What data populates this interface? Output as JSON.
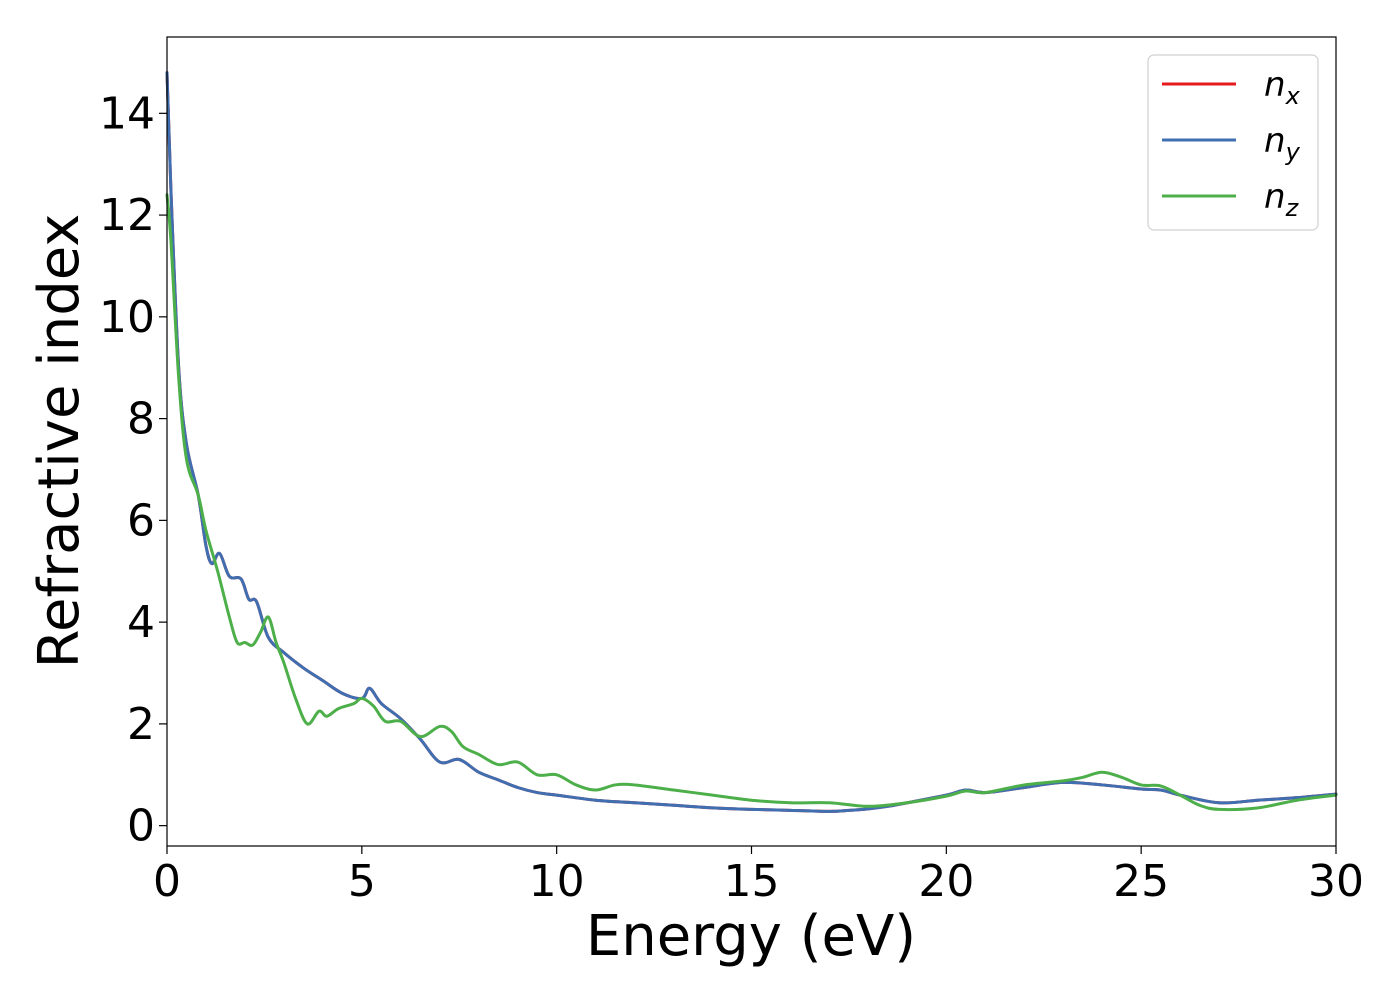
{
  "chart_data": {
    "type": "line",
    "title": "",
    "xlabel": "Energy (eV)",
    "ylabel": "Refractive index",
    "xlim": [
      0,
      30
    ],
    "ylim": [
      -0.4,
      15.5
    ],
    "xticks": [
      0,
      5,
      10,
      15,
      20,
      25,
      30
    ],
    "yticks": [
      0,
      2,
      4,
      6,
      8,
      10,
      12,
      14
    ],
    "grid": false,
    "legend_position": "top-right",
    "series": [
      {
        "name": "n_x",
        "legend_base": "n",
        "legend_sub": "x",
        "color": "#e41a1c",
        "x": [
          0.0,
          0.1,
          0.3,
          0.5,
          0.8,
          1.0,
          1.15,
          1.35,
          1.6,
          1.9,
          2.1,
          2.3,
          2.6,
          3.0,
          3.5,
          4.0,
          4.5,
          5.0,
          5.2,
          5.5,
          6.0,
          6.5,
          7.0,
          7.5,
          8.0,
          8.5,
          9.0,
          9.5,
          10.0,
          11.0,
          12.0,
          13.0,
          14.0,
          15.0,
          16.0,
          17.0,
          17.5,
          18.0,
          18.5,
          19.0,
          20.0,
          20.5,
          21.0,
          22.0,
          23.0,
          24.0,
          25.0,
          25.5,
          26.0,
          27.0,
          28.0,
          29.0,
          30.0
        ],
        "y": [
          14.8,
          12.5,
          9.0,
          7.5,
          6.5,
          5.5,
          5.15,
          5.35,
          4.9,
          4.85,
          4.45,
          4.4,
          3.7,
          3.4,
          3.1,
          2.85,
          2.6,
          2.5,
          2.7,
          2.4,
          2.1,
          1.7,
          1.25,
          1.3,
          1.05,
          0.9,
          0.75,
          0.65,
          0.6,
          0.5,
          0.45,
          0.4,
          0.35,
          0.32,
          0.3,
          0.28,
          0.3,
          0.33,
          0.38,
          0.45,
          0.6,
          0.7,
          0.65,
          0.75,
          0.85,
          0.8,
          0.72,
          0.7,
          0.6,
          0.45,
          0.5,
          0.55,
          0.62
        ]
      },
      {
        "name": "n_y",
        "legend_base": "n",
        "legend_sub": "y",
        "color": "#3f6fb0",
        "x": [
          0.0,
          0.1,
          0.3,
          0.5,
          0.8,
          1.0,
          1.15,
          1.35,
          1.6,
          1.9,
          2.1,
          2.3,
          2.6,
          3.0,
          3.5,
          4.0,
          4.5,
          5.0,
          5.2,
          5.5,
          6.0,
          6.5,
          7.0,
          7.5,
          8.0,
          8.5,
          9.0,
          9.5,
          10.0,
          11.0,
          12.0,
          13.0,
          14.0,
          15.0,
          16.0,
          17.0,
          17.5,
          18.0,
          18.5,
          19.0,
          20.0,
          20.5,
          21.0,
          22.0,
          23.0,
          24.0,
          25.0,
          25.5,
          26.0,
          27.0,
          28.0,
          29.0,
          30.0
        ],
        "y": [
          14.8,
          12.5,
          9.0,
          7.5,
          6.5,
          5.5,
          5.15,
          5.35,
          4.9,
          4.85,
          4.45,
          4.4,
          3.7,
          3.4,
          3.1,
          2.85,
          2.6,
          2.5,
          2.7,
          2.4,
          2.1,
          1.7,
          1.25,
          1.3,
          1.05,
          0.9,
          0.75,
          0.65,
          0.6,
          0.5,
          0.45,
          0.4,
          0.35,
          0.32,
          0.3,
          0.28,
          0.3,
          0.33,
          0.38,
          0.45,
          0.6,
          0.7,
          0.65,
          0.75,
          0.85,
          0.8,
          0.72,
          0.7,
          0.6,
          0.45,
          0.5,
          0.55,
          0.62
        ]
      },
      {
        "name": "n_z",
        "legend_base": "n",
        "legend_sub": "z",
        "color": "#4daf4a",
        "x": [
          0.0,
          0.1,
          0.3,
          0.5,
          0.8,
          1.0,
          1.3,
          1.6,
          1.8,
          2.0,
          2.2,
          2.4,
          2.6,
          2.8,
          3.0,
          3.3,
          3.6,
          3.9,
          4.1,
          4.4,
          4.8,
          5.0,
          5.3,
          5.6,
          6.0,
          6.5,
          7.0,
          7.3,
          7.6,
          8.0,
          8.5,
          9.0,
          9.5,
          10.0,
          10.5,
          11.0,
          11.5,
          12.0,
          13.0,
          14.0,
          15.0,
          16.0,
          17.0,
          18.0,
          19.0,
          20.0,
          20.5,
          21.0,
          22.0,
          23.0,
          23.5,
          24.0,
          24.5,
          25.0,
          25.5,
          26.0,
          26.5,
          27.0,
          28.0,
          29.0,
          30.0
        ],
        "y": [
          12.4,
          11.5,
          8.8,
          7.2,
          6.5,
          5.8,
          5.0,
          4.1,
          3.6,
          3.6,
          3.55,
          3.8,
          4.1,
          3.6,
          3.2,
          2.5,
          2.0,
          2.25,
          2.15,
          2.3,
          2.4,
          2.5,
          2.35,
          2.05,
          2.05,
          1.75,
          1.95,
          1.85,
          1.55,
          1.4,
          1.2,
          1.25,
          1.0,
          1.0,
          0.8,
          0.7,
          0.8,
          0.8,
          0.7,
          0.6,
          0.5,
          0.45,
          0.45,
          0.38,
          0.45,
          0.58,
          0.68,
          0.65,
          0.8,
          0.88,
          0.95,
          1.05,
          0.95,
          0.8,
          0.78,
          0.6,
          0.4,
          0.32,
          0.35,
          0.5,
          0.6
        ]
      }
    ]
  }
}
